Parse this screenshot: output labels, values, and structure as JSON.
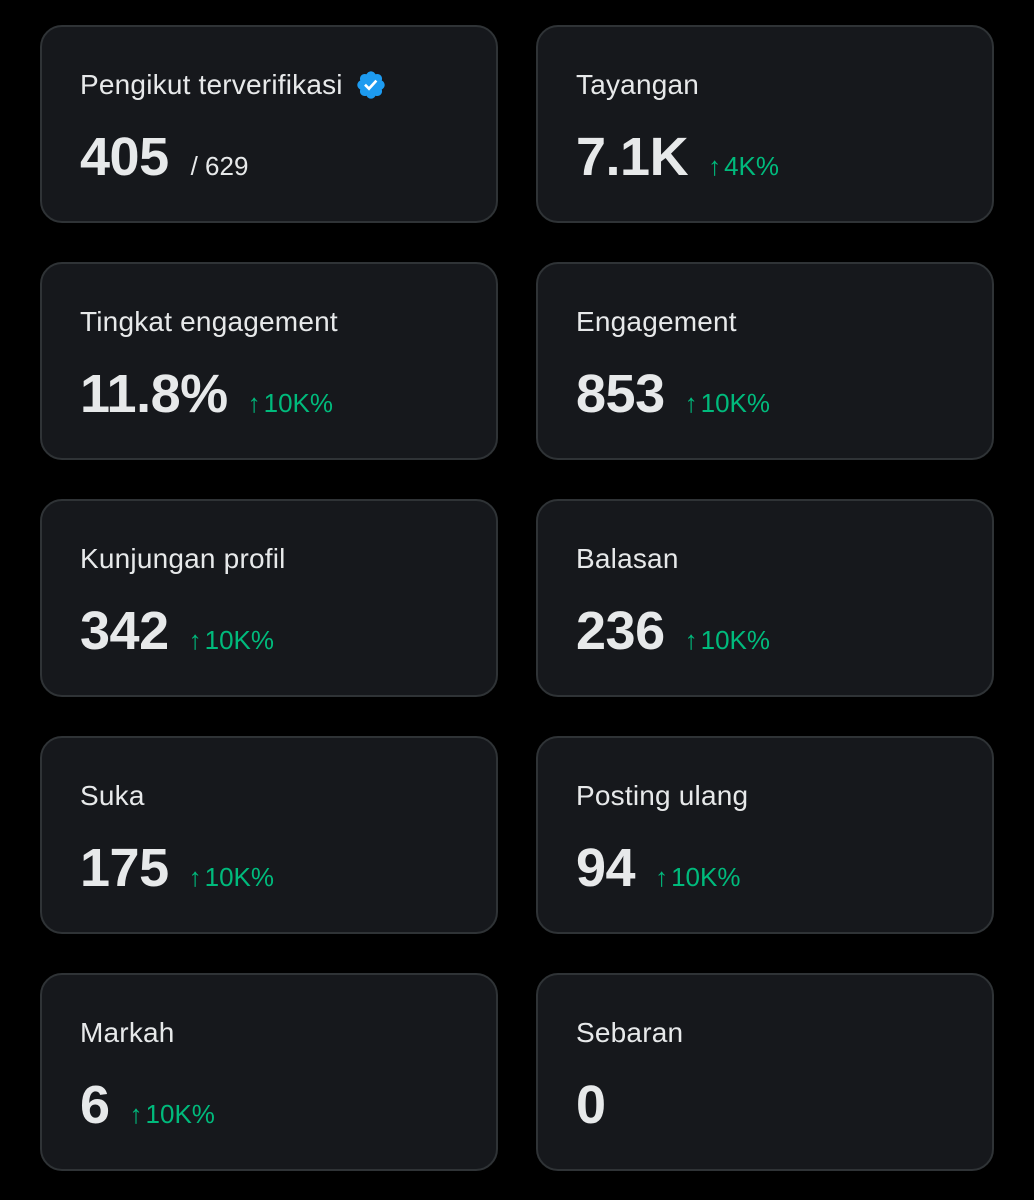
{
  "cards": [
    {
      "label": "Pengikut terverifikasi",
      "value": "405",
      "total": "/ 629",
      "verified": true,
      "change": ""
    },
    {
      "label": "Tayangan",
      "value": "7.1K",
      "total": "",
      "verified": false,
      "change": "4K%"
    },
    {
      "label": "Tingkat engagement",
      "value": "11.8%",
      "total": "",
      "verified": false,
      "change": "10K%"
    },
    {
      "label": "Engagement",
      "value": "853",
      "total": "",
      "verified": false,
      "change": "10K%"
    },
    {
      "label": "Kunjungan profil",
      "value": "342",
      "total": "",
      "verified": false,
      "change": "10K%"
    },
    {
      "label": "Balasan",
      "value": "236",
      "total": "",
      "verified": false,
      "change": "10K%"
    },
    {
      "label": "Suka",
      "value": "175",
      "total": "",
      "verified": false,
      "change": "10K%"
    },
    {
      "label": "Posting ulang",
      "value": "94",
      "total": "",
      "verified": false,
      "change": "10K%"
    },
    {
      "label": "Markah",
      "value": "6",
      "total": "",
      "verified": false,
      "change": "10K%"
    },
    {
      "label": "Sebaran",
      "value": "0",
      "total": "",
      "verified": false,
      "change": ""
    }
  ],
  "icons": {
    "verified": "verified-badge-icon",
    "arrow": "arrow-up-icon"
  },
  "colors": {
    "background": "#000000",
    "card": "#16181c",
    "border": "#2f3336",
    "text": "#e7e9ea",
    "positive": "#00ba7c",
    "verified": "#1d9bf0"
  },
  "arrow_glyph": "↑"
}
